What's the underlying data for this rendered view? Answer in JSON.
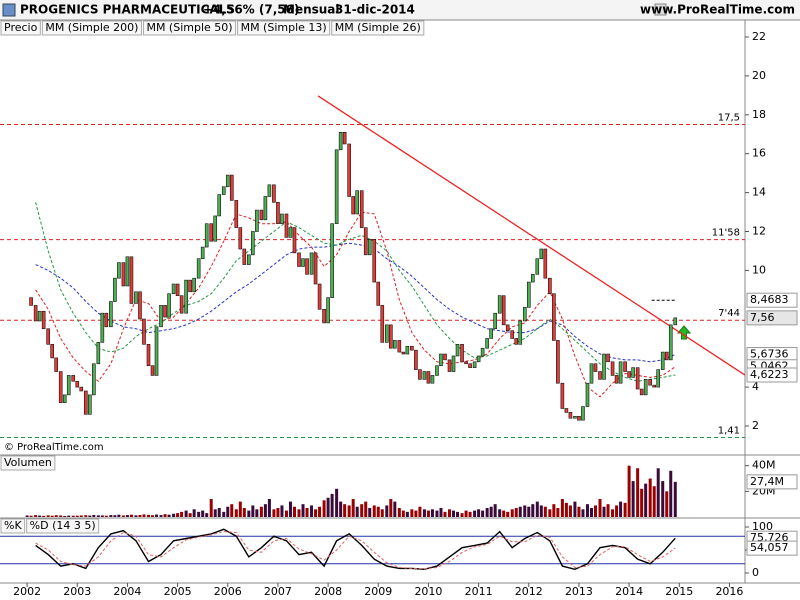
{
  "header": {
    "title": "PROGENICS PHARMACEUTICALS",
    "change": "+4,56% (7,56)",
    "period": "Mensual",
    "date": "31-dic-2014",
    "site": "www.ProRealTime.com"
  },
  "chart_data": [
    {
      "type": "candlestick",
      "credit": "© ProRealTime.com",
      "legend": [
        {
          "name": "Precio",
          "color": "#000000"
        },
        {
          "name": "MM (Simple 200)",
          "color": "#000000"
        }
      ],
      "xlim": [
        2001.46,
        2016.31
      ],
      "ylim": [
        1.28,
        22.36
      ],
      "yticks": [
        2,
        4,
        10,
        12,
        14,
        16,
        18,
        20,
        22
      ],
      "up_color": "#4caf50",
      "down_color": "#e53935",
      "last_label": "7,56",
      "x": [
        2002.0,
        2002.08,
        2002.17,
        2002.25,
        2002.33,
        2002.42,
        2002.5,
        2002.58,
        2002.67,
        2002.75,
        2002.83,
        2002.92,
        2003.0,
        2003.08,
        2003.17,
        2003.25,
        2003.33,
        2003.42,
        2003.5,
        2003.58,
        2003.67,
        2003.75,
        2003.83,
        2003.92,
        2004.0,
        2004.08,
        2004.17,
        2004.25,
        2004.33,
        2004.42,
        2004.5,
        2004.58,
        2004.67,
        2004.75,
        2004.83,
        2004.92,
        2005.0,
        2005.08,
        2005.17,
        2005.25,
        2005.33,
        2005.42,
        2005.5,
        2005.58,
        2005.67,
        2005.75,
        2005.83,
        2005.92,
        2006.0,
        2006.08,
        2006.17,
        2006.25,
        2006.33,
        2006.42,
        2006.5,
        2006.58,
        2006.67,
        2006.75,
        2006.83,
        2006.92,
        2007.0,
        2007.08,
        2007.17,
        2007.25,
        2007.33,
        2007.42,
        2007.5,
        2007.58,
        2007.67,
        2007.75,
        2007.83,
        2007.92,
        2008.0,
        2008.08,
        2008.17,
        2008.25,
        2008.33,
        2008.42,
        2008.5,
        2008.58,
        2008.67,
        2008.75,
        2008.83,
        2008.92,
        2009.0,
        2009.08,
        2009.17,
        2009.25,
        2009.33,
        2009.42,
        2009.5,
        2009.58,
        2009.67,
        2009.75,
        2009.83,
        2009.92,
        2010.0,
        2010.08,
        2010.17,
        2010.25,
        2010.33,
        2010.42,
        2010.5,
        2010.58,
        2010.67,
        2010.75,
        2010.83,
        2010.92,
        2011.0,
        2011.08,
        2011.17,
        2011.25,
        2011.33,
        2011.42,
        2011.5,
        2011.58,
        2011.67,
        2011.75,
        2011.83,
        2011.92,
        2012.0,
        2012.08,
        2012.17,
        2012.25,
        2012.33,
        2012.42,
        2012.5,
        2012.58,
        2012.67,
        2012.75,
        2012.83,
        2012.92,
        2013.0,
        2013.08,
        2013.17,
        2013.25,
        2013.33,
        2013.42,
        2013.5,
        2013.58,
        2013.67,
        2013.75,
        2013.83,
        2013.92,
        2014.0,
        2014.08,
        2014.17,
        2014.25,
        2014.33,
        2014.42,
        2014.5,
        2014.58,
        2014.67,
        2014.75,
        2014.83,
        2014.92
      ],
      "close": [
        8.6,
        8.2,
        7.4,
        7.9,
        7.0,
        6.2,
        5.5,
        4.8,
        3.2,
        3.6,
        4.6,
        4.3,
        4.0,
        3.8,
        2.6,
        3.6,
        5.2,
        6.3,
        7.8,
        7.1,
        8.4,
        9.6,
        10.4,
        9.2,
        10.7,
        8.3,
        8.9,
        7.5,
        6.2,
        5.1,
        4.6,
        7.1,
        8.2,
        7.6,
        8.8,
        9.3,
        8.7,
        7.8,
        9.5,
        8.9,
        9.6,
        10.6,
        11.2,
        12.4,
        11.5,
        12.8,
        13.9,
        14.3,
        14.9,
        13.6,
        12.2,
        11.1,
        10.3,
        10.8,
        12.0,
        13.1,
        12.6,
        13.8,
        14.4,
        13.5,
        12.4,
        12.9,
        11.7,
        12.2,
        10.9,
        10.2,
        10.6,
        9.8,
        10.9,
        9.3,
        8.0,
        7.3,
        8.6,
        12.4,
        16.2,
        17.1,
        16.5,
        13.8,
        12.9,
        14.1,
        12.2,
        10.8,
        11.6,
        9.4,
        8.2,
        6.3,
        7.2,
        6.0,
        6.4,
        5.8,
        5.7,
        6.1,
        5.9,
        4.9,
        4.4,
        4.8,
        4.2,
        4.6,
        5.1,
        5.7,
        5.4,
        4.8,
        5.6,
        6.2,
        5.3,
        5.2,
        5.0,
        5.3,
        5.6,
        6.0,
        6.5,
        7.0,
        7.8,
        8.7,
        7.2,
        6.9,
        6.5,
        6.2,
        7.4,
        8.1,
        9.4,
        9.8,
        10.6,
        11.1,
        9.6,
        8.8,
        6.4,
        4.2,
        2.9,
        2.7,
        2.4,
        2.5,
        2.3,
        3.0,
        4.2,
        5.2,
        4.8,
        4.4,
        5.7,
        5.3,
        4.6,
        4.2,
        5.3,
        4.8,
        4.5,
        5.0,
        3.9,
        3.6,
        4.4,
        4.1,
        4.0,
        4.9,
        5.8,
        5.4,
        7.2,
        7.56
      ],
      "series": [
        {
          "name": "MM (Simple 50)",
          "color": "#2233cc",
          "last_label": "5,6736",
          "x": [
            2002.17,
            2002.42,
            2002.67,
            2002.92,
            2003.17,
            2003.42,
            2003.67,
            2003.92,
            2004.17,
            2004.42,
            2004.67,
            2004.92,
            2005.17,
            2005.42,
            2005.67,
            2005.92,
            2006.17,
            2006.42,
            2006.67,
            2006.92,
            2007.17,
            2007.42,
            2007.67,
            2007.92,
            2008.17,
            2008.42,
            2008.67,
            2008.92,
            2009.17,
            2009.42,
            2009.67,
            2009.92,
            2010.17,
            2010.42,
            2010.67,
            2010.92,
            2011.17,
            2011.42,
            2011.67,
            2011.92,
            2012.17,
            2012.42,
            2012.67,
            2012.92,
            2013.17,
            2013.42,
            2013.67,
            2013.92,
            2014.17,
            2014.42,
            2014.67,
            2014.92
          ],
          "values": [
            10.3,
            10.0,
            9.6,
            9.1,
            8.4,
            7.8,
            7.4,
            7.1,
            7.0,
            6.8,
            6.9,
            7.0,
            7.2,
            7.5,
            7.9,
            8.4,
            8.9,
            9.3,
            9.8,
            10.3,
            10.8,
            11.1,
            11.2,
            11.2,
            11.3,
            11.4,
            11.3,
            11.1,
            10.6,
            10.2,
            9.7,
            9.1,
            8.5,
            8.0,
            7.6,
            7.3,
            7.0,
            6.9,
            6.8,
            6.8,
            7.0,
            7.4,
            7.2,
            6.6,
            6.1,
            5.7,
            5.5,
            5.4,
            5.4,
            5.3,
            5.4,
            5.6736
          ]
        },
        {
          "name": "MM (Simple 13)",
          "color": "#dd2222",
          "last_label": "5,0462",
          "x": [
            2002.17,
            2002.42,
            2002.67,
            2002.92,
            2003.17,
            2003.42,
            2003.67,
            2003.92,
            2004.17,
            2004.42,
            2004.67,
            2004.92,
            2005.17,
            2005.42,
            2005.67,
            2005.92,
            2006.17,
            2006.42,
            2006.67,
            2006.92,
            2007.17,
            2007.42,
            2007.67,
            2007.92,
            2008.17,
            2008.42,
            2008.67,
            2008.92,
            2009.17,
            2009.42,
            2009.67,
            2009.92,
            2010.17,
            2010.42,
            2010.67,
            2010.92,
            2011.17,
            2011.42,
            2011.67,
            2011.92,
            2012.17,
            2012.42,
            2012.67,
            2012.92,
            2013.17,
            2013.42,
            2013.67,
            2013.92,
            2014.17,
            2014.42,
            2014.67,
            2014.92
          ],
          "values": [
            9.0,
            8.0,
            6.5,
            5.5,
            4.8,
            4.3,
            5.2,
            7.0,
            8.5,
            8.3,
            7.4,
            7.6,
            8.3,
            9.1,
            10.2,
            11.5,
            12.9,
            12.7,
            12.4,
            12.4,
            12.5,
            11.8,
            11.2,
            10.2,
            10.8,
            12.0,
            13.0,
            12.9,
            11.0,
            8.5,
            6.8,
            5.9,
            5.3,
            5.2,
            5.3,
            5.4,
            5.7,
            6.5,
            7.1,
            7.3,
            8.2,
            8.9,
            7.5,
            5.6,
            4.0,
            3.5,
            4.2,
            4.7,
            4.6,
            4.5,
            4.6,
            5.0462
          ]
        },
        {
          "name": "MM (Simple 26)",
          "color": "#229944",
          "last_label": "4,6223",
          "x": [
            2002.17,
            2002.42,
            2002.67,
            2002.92,
            2003.17,
            2003.42,
            2003.67,
            2003.92,
            2004.17,
            2004.42,
            2004.67,
            2004.92,
            2005.17,
            2005.42,
            2005.67,
            2005.92,
            2006.17,
            2006.42,
            2006.67,
            2006.92,
            2007.17,
            2007.42,
            2007.67,
            2007.92,
            2008.17,
            2008.42,
            2008.67,
            2008.92,
            2009.17,
            2009.42,
            2009.67,
            2009.92,
            2010.17,
            2010.42,
            2010.67,
            2010.92,
            2011.17,
            2011.42,
            2011.67,
            2011.92,
            2012.17,
            2012.42,
            2012.67,
            2012.92,
            2013.17,
            2013.42,
            2013.67,
            2013.92,
            2014.17,
            2014.42,
            2014.67,
            2014.92
          ],
          "values": [
            13.5,
            11.0,
            9.0,
            7.8,
            6.8,
            6.0,
            5.8,
            6.0,
            6.6,
            7.0,
            7.3,
            7.8,
            8.2,
            8.4,
            8.8,
            9.6,
            10.5,
            11.0,
            11.5,
            12.0,
            12.5,
            12.2,
            11.8,
            11.4,
            11.3,
            11.6,
            11.8,
            11.5,
            11.0,
            10.0,
            9.2,
            8.2,
            7.2,
            6.5,
            5.9,
            5.5,
            5.6,
            5.9,
            6.2,
            6.5,
            7.0,
            7.5,
            7.0,
            6.4,
            5.8,
            5.2,
            4.8,
            4.5,
            4.3,
            4.4,
            4.5,
            4.6223
          ]
        }
      ],
      "levels": [
        {
          "value": 17.5,
          "label": "17,5",
          "color": "#dd2222"
        },
        {
          "value": 11.58,
          "label": "11'58",
          "color": "#dd2222"
        },
        {
          "value": 7.44,
          "label": "7'44",
          "color": "#dd2222"
        },
        {
          "value": 1.41,
          "label": "1,41",
          "color": "#229944"
        }
      ],
      "marker": {
        "value": 8.4683,
        "label": "8,4683",
        "x": [
          2014.45,
          2014.95
        ]
      },
      "trendline": {
        "x": [
          2007.8,
          2016.31
        ],
        "y": [
          18.97,
          4.62
        ],
        "color": "#ee2222"
      }
    },
    {
      "type": "bar",
      "title": "Volumen",
      "ylim": [
        0,
        46000000
      ],
      "yticks": [
        {
          "value": 40000000,
          "label": "40M"
        },
        {
          "value": 20000000,
          "label": "20M"
        }
      ],
      "up_color": "#3a0a3a",
      "down_color": "#990000",
      "last_label": "27,4M",
      "values": [
        1200000.0,
        1000000.0,
        1500000.0,
        1100000.0,
        900000.0,
        1300000.0,
        1000000.0,
        1400000.0,
        1200000.0,
        800000.0,
        1100000.0,
        1000000.0,
        1000000.0,
        1200000.0,
        1400000.0,
        1100000.0,
        1600000.0,
        1300000.0,
        1200000.0,
        1000000.0,
        1500000.0,
        1400000.0,
        1800000.0,
        1200000.0,
        1500000.0,
        1800000.0,
        1300000.0,
        1600000.0,
        2000000.0,
        1700000.0,
        1400000.0,
        1900000.0,
        1500000.0,
        2200000.0,
        1800000.0,
        2500000.0,
        3000000.0,
        4000000.0,
        5000000.0,
        3000000.0,
        6000000.0,
        4000000.0,
        5000000.0,
        3000000.0,
        14000000.0,
        6000000.0,
        7000000.0,
        4000000.0,
        8000000.0,
        10000000.0,
        6000000.0,
        12000000.0,
        7000000.0,
        5000000.0,
        9000000.0,
        6000000.0,
        8000000.0,
        10000000.0,
        14000000.0,
        6000000.0,
        7000000.0,
        9000000.0,
        5000000.0,
        12000000.0,
        8000000.0,
        6000000.0,
        10000000.0,
        7000000.0,
        9000000.0,
        6000000.0,
        8000000.0,
        13000000.0,
        15000000.0,
        18000000.0,
        22000000.0,
        12000000.0,
        10000000.0,
        9000000.0,
        14000000.0,
        8000000.0,
        10000000.0,
        12000000.0,
        7000000.0,
        9000000.0,
        8000000.0,
        6000000.0,
        9000000.0,
        14000000.0,
        12000000.0,
        7000000.0,
        5000000.0,
        4000000.0,
        6000000.0,
        5000000.0,
        8000000.0,
        6000000.0,
        5000000.0,
        6000000.0,
        5000000.0,
        7000000.0,
        4000000.0,
        6000000.0,
        5000000.0,
        4000000.0,
        3000000.0,
        5000000.0,
        4000000.0,
        5000000.0,
        6000000.0,
        5000000.0,
        7000000.0,
        8000000.0,
        10000000.0,
        6000000.0,
        5000000.0,
        4000000.0,
        6000000.0,
        7000000.0,
        8000000.0,
        9000000.0,
        8000000.0,
        10000000.0,
        12000000.0,
        9000000.0,
        8000000.0,
        6000000.0,
        10000000.0,
        7000000.0,
        14000000.0,
        11000000.0,
        9000000.0,
        12000000.0,
        8000000.0,
        6000000.0,
        10000000.0,
        7000000.0,
        9000000.0,
        14000000.0,
        8000000.0,
        10000000.0,
        6000000.0,
        9000000.0,
        12000000.0,
        11000000.0,
        40000000.0,
        28000000.0,
        38000000.0,
        22000000.0,
        26000000.0,
        30000000.0,
        24000000.0,
        38000000.0,
        28000000.0,
        20000000.0,
        36000000.0,
        27400000.0
      ]
    },
    {
      "type": "line",
      "ylim": [
        -19.6,
        119.6
      ],
      "yticks": [
        100,
        50,
        0
      ],
      "levels": [
        80,
        20
      ],
      "xlim": [
        2001.46,
        2016.31
      ],
      "xticks": [
        2002,
        2003,
        2004,
        2005,
        2006,
        2007,
        2008,
        2009,
        2010,
        2011,
        2012,
        2013,
        2014,
        2015,
        2016
      ],
      "x": [
        2002.17,
        2002.42,
        2002.67,
        2002.92,
        2003.17,
        2003.42,
        2003.67,
        2003.92,
        2004.17,
        2004.42,
        2004.67,
        2004.92,
        2005.17,
        2005.42,
        2005.67,
        2005.92,
        2006.17,
        2006.42,
        2006.67,
        2006.92,
        2007.17,
        2007.42,
        2007.67,
        2007.92,
        2008.17,
        2008.42,
        2008.67,
        2008.92,
        2009.17,
        2009.42,
        2009.67,
        2009.92,
        2010.17,
        2010.42,
        2010.67,
        2010.92,
        2011.17,
        2011.42,
        2011.67,
        2011.92,
        2012.17,
        2012.42,
        2012.67,
        2012.92,
        2013.17,
        2013.42,
        2013.67,
        2013.92,
        2014.17,
        2014.42,
        2014.67,
        2014.92
      ],
      "series": [
        {
          "name": "%K",
          "color": "#000000",
          "last_label": "75,726",
          "values": [
            60,
            40,
            15,
            20,
            10,
            55,
            85,
            92,
            70,
            25,
            40,
            70,
            75,
            80,
            85,
            95,
            80,
            35,
            55,
            80,
            70,
            40,
            45,
            15,
            70,
            85,
            60,
            30,
            15,
            10,
            10,
            8,
            15,
            35,
            55,
            60,
            65,
            90,
            55,
            75,
            88,
            70,
            15,
            8,
            20,
            55,
            60,
            55,
            30,
            20,
            45,
            75.726
          ]
        },
        {
          "name": "%D (14 3 5)",
          "color": "#e06060",
          "last_label": "54,057",
          "values": [
            65,
            50,
            25,
            18,
            15,
            35,
            70,
            88,
            80,
            40,
            35,
            55,
            72,
            78,
            83,
            90,
            88,
            50,
            45,
            70,
            75,
            52,
            42,
            28,
            50,
            80,
            70,
            45,
            22,
            12,
            10,
            9,
            12,
            25,
            45,
            57,
            62,
            80,
            68,
            68,
            82,
            78,
            35,
            12,
            15,
            40,
            57,
            57,
            40,
            25,
            35,
            54.057
          ]
        }
      ]
    }
  ]
}
